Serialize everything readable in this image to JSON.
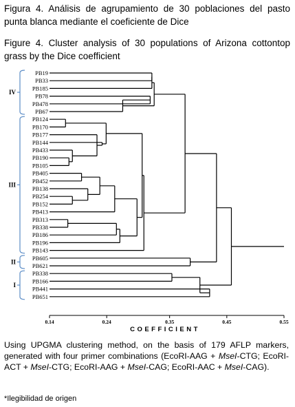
{
  "caption_es": "Figura 4. Análisis de agrupamiento de 30 poblaciones del pasto punta blanca mediante el coeficiente de Dice",
  "caption_en": "Figure 4. Cluster analysis of 30 populations of Arizona cottontop grass by the Dice coefficient",
  "dendrogram": {
    "axis_title": "COEFFICIENT",
    "ticks": [
      "0.14",
      "0.24",
      "0.35",
      "0.45",
      "0.55"
    ],
    "tick_values": [
      0.14,
      0.24,
      0.35,
      0.45,
      0.55
    ],
    "leaves": [
      "PB19",
      "PB33",
      "PB185",
      "PB78",
      "PB478",
      "PB67",
      "PB124",
      "PB170",
      "PB177",
      "PB144",
      "PB433",
      "PB190",
      "PB105",
      "PB405",
      "PB452",
      "PB138",
      "PB254",
      "PB152",
      "PB413",
      "PB313",
      "PB338",
      "PB186",
      "PB196",
      "PB143",
      "PB605",
      "PB621",
      "PB338",
      "PB166",
      "PB441",
      "PB651"
    ],
    "groups": [
      {
        "label": "IV"
      },
      {
        "label": "III"
      },
      {
        "label": "II"
      },
      {
        "label": "I"
      }
    ],
    "merges": [
      {
        "a": 6,
        "b": 7,
        "h": 0.168
      },
      {
        "a": 19,
        "b": 20,
        "h": 0.172
      },
      {
        "a": 11,
        "b": 12,
        "h": 0.174
      },
      {
        "a": 10,
        "b": "n2",
        "h": 0.18
      },
      {
        "a": 16,
        "b": 17,
        "h": 0.18
      },
      {
        "a": 13,
        "b": 14,
        "h": 0.196
      },
      {
        "a": 15,
        "b": "n4",
        "h": 0.207
      },
      {
        "a": 3,
        "b": 4,
        "h": 0.316
      },
      {
        "a": 8,
        "b": "n3",
        "h": 0.223
      },
      {
        "a": 9,
        "b": "n8",
        "h": 0.232
      },
      {
        "a": "n0",
        "b": "n9",
        "h": 0.239
      },
      {
        "a": "n5",
        "b": "n6",
        "h": 0.228
      },
      {
        "a": "n11",
        "b": 18,
        "h": 0.254
      },
      {
        "a": "n1",
        "b": 21,
        "h": 0.257
      },
      {
        "a": "n13",
        "b": 22,
        "h": 0.263
      },
      {
        "a": 0,
        "b": 1,
        "h": 0.319
      },
      {
        "a": "n15",
        "b": 2,
        "h": 0.319
      },
      {
        "a": 26,
        "b": 27,
        "h": 0.354
      },
      {
        "a": "n12",
        "b": "n14",
        "h": 0.293
      },
      {
        "a": "n10",
        "b": "n18",
        "h": 0.302
      },
      {
        "a": "n19",
        "b": 23,
        "h": 0.305
      },
      {
        "a": "n7",
        "b": 5,
        "h": 0.268
      },
      {
        "a": "n16",
        "b": "n21",
        "h": 0.323
      },
      {
        "a": 24,
        "b": 25,
        "h": 0.386
      },
      {
        "a": 28,
        "b": 29,
        "h": 0.42
      },
      {
        "a": "n17",
        "b": "n24",
        "h": 0.403
      },
      {
        "a": "n20",
        "b": "n22",
        "h": 0.377
      },
      {
        "a": "n26",
        "b": "n23",
        "h": 0.432
      },
      {
        "a": "n27",
        "b": "n25",
        "h": 0.458
      },
      {
        "a": "n28",
        "b": null,
        "h": 0.55
      }
    ]
  },
  "method_text": {
    "p1": "Using UPGMA clustering method, on the basis of 179 AFLP markers, generated with four primer combinations (EcoRI-AAG + ",
    "m1": "MseI",
    "p2": "-CTG; EcoRI-ACT + ",
    "m2": "MseI",
    "p3": "-CTG; EcoRI-AAG + ",
    "m3": "MseI",
    "p4": "-CAG; EcoRI-AAC + ",
    "m4": "MseI",
    "p5": "-CAG)."
  },
  "note": "*Ilegibilidad de origen",
  "colors": {
    "lines": "#000000",
    "group_brackets": "#5b8cc6"
  }
}
